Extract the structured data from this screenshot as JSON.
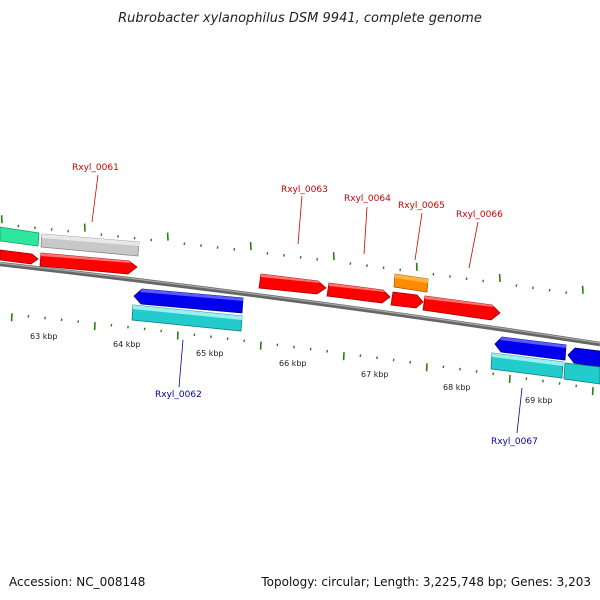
{
  "title": "Rubrobacter xylanophilus DSM 9941, complete genome",
  "footer": {
    "accession": "Accession: NC_008148",
    "summary": "Topology: circular; Length: 3,225,748 bp; Genes: 3,203"
  },
  "colors": {
    "backbone": "#888888",
    "tick": "#2e7d0f",
    "label_red": "#cc0000",
    "label_blue": "#0000aa"
  },
  "kbp_labels": [
    "63 kbp",
    "64 kbp",
    "65 kbp",
    "66 kbp",
    "67 kbp",
    "68 kbp",
    "69 kbp"
  ],
  "gene_labels": [
    {
      "text": "Rxyl_0061",
      "color": "red"
    },
    {
      "text": "Rxyl_0062",
      "color": "blue"
    },
    {
      "text": "Rxyl_0063",
      "color": "red"
    },
    {
      "text": "Rxyl_0064",
      "color": "red"
    },
    {
      "text": "Rxyl_0065",
      "color": "red"
    },
    {
      "text": "Rxyl_0066",
      "color": "red"
    },
    {
      "text": "Rxyl_0067",
      "color": "blue"
    }
  ],
  "features": [
    {
      "track": "forward-outer",
      "fill": "#2ee6a0",
      "role": "partial feature"
    },
    {
      "track": "forward-outer",
      "fill": "#c8c8c8",
      "role": "feature"
    },
    {
      "track": "forward-outer",
      "fill": "#ff8c00",
      "role": "feature"
    },
    {
      "track": "forward-inner",
      "fill": "#ff0000",
      "role": "CDS"
    },
    {
      "track": "reverse-inner",
      "fill": "#0000ee",
      "role": "CDS"
    },
    {
      "track": "reverse-outer",
      "fill": "#22cccc",
      "role": "gene"
    }
  ]
}
